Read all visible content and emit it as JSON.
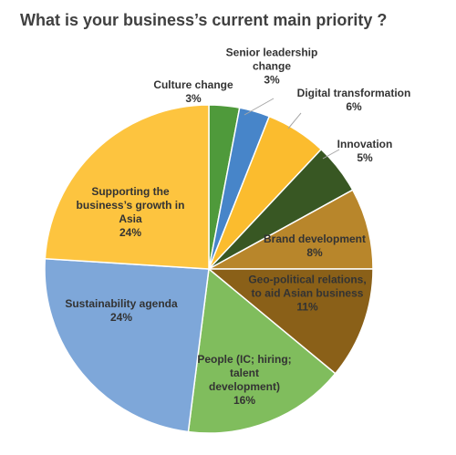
{
  "chart_data": {
    "type": "pie",
    "title": "What is your business’s current main priority ?",
    "categories": [
      "Culture change",
      "Senior leadership change",
      "Digital transformation",
      "Innovation",
      "Brand development",
      "Geo-political relations, to aid Asian business",
      "People (IC; hiring; talent development)",
      "Sustainability agenda",
      "Supporting the business’s growth in Asia"
    ],
    "values": [
      3,
      3,
      6,
      5,
      8,
      11,
      16,
      24,
      24
    ],
    "value_labels": [
      "3%",
      "3%",
      "6%",
      "5%",
      "8%",
      "11%",
      "16%",
      "24%",
      "24%"
    ],
    "colors": [
      "#4f9a3b",
      "#4785c9",
      "#fbbc2e",
      "#385723",
      "#b8862b",
      "#8a6018",
      "#80bd5d",
      "#7ea7d9",
      "#fdc43f"
    ]
  }
}
